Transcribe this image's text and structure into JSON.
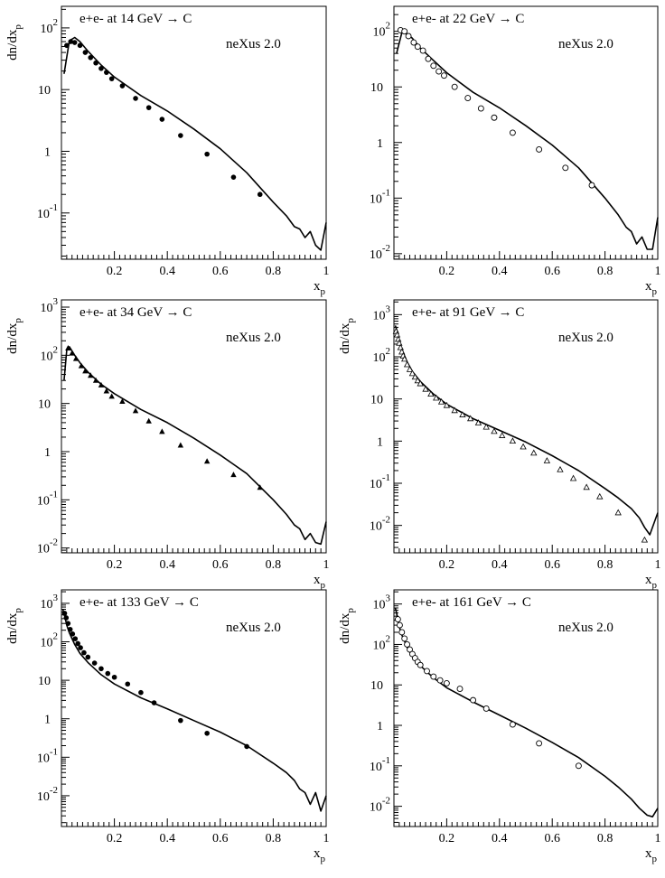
{
  "chart_data": [
    {
      "type": "line+scatter",
      "title": "e+e- at 14 GeV → C",
      "annotation": "neXus 2.0",
      "ylabel": "dn/dx",
      "ylabel_sub": "p",
      "xlabel": "x",
      "xlabel_sub": "p",
      "xlim": [
        0,
        1
      ],
      "ylim_log": [
        -1.75,
        2.35
      ],
      "y_scale": "log",
      "xticks": [
        0.2,
        0.4,
        0.6,
        0.8,
        1
      ],
      "xtick_labels": [
        "0.2",
        "0.4",
        "0.6",
        "0.8",
        "1"
      ],
      "yticks_exp": [
        -1,
        0,
        1,
        2
      ],
      "ytick_labels": [
        {
          "base": "10",
          "exp": "-1"
        },
        {
          "base": "1",
          "exp": ""
        },
        {
          "base": "10",
          "exp": ""
        },
        {
          "base": "10",
          "exp": "2"
        }
      ],
      "marker": "filled-circle",
      "data_points": {
        "x": [
          0.02,
          0.035,
          0.05,
          0.07,
          0.09,
          0.11,
          0.13,
          0.15,
          0.17,
          0.19,
          0.23,
          0.28,
          0.33,
          0.38,
          0.45,
          0.55,
          0.65,
          0.75
        ],
        "y": [
          52,
          60,
          58,
          52,
          40,
          33,
          27,
          22,
          19,
          15,
          11.5,
          7.2,
          5.1,
          3.3,
          1.8,
          0.9,
          0.38,
          0.2
        ]
      },
      "model_curve": {
        "x": [
          0.01,
          0.03,
          0.05,
          0.07,
          0.1,
          0.15,
          0.2,
          0.3,
          0.4,
          0.5,
          0.6,
          0.7,
          0.8,
          0.85,
          0.88,
          0.9,
          0.92,
          0.94,
          0.96,
          0.98,
          1.0
        ],
        "y": [
          18,
          62,
          70,
          60,
          42,
          25,
          16,
          8,
          4.5,
          2.3,
          1.1,
          0.45,
          0.15,
          0.09,
          0.06,
          0.055,
          0.04,
          0.05,
          0.03,
          0.025,
          0.07
        ]
      }
    },
    {
      "type": "line+scatter",
      "title": "e+e- at 22 GeV → C",
      "annotation": "neXus 2.0",
      "ylabel": "",
      "ylabel_sub": "",
      "xlabel": "x",
      "xlabel_sub": "p",
      "xlim": [
        0,
        1
      ],
      "ylim_log": [
        -2.1,
        2.45
      ],
      "y_scale": "log",
      "xticks": [
        0.2,
        0.4,
        0.6,
        0.8,
        1
      ],
      "xtick_labels": [
        "0.2",
        "0.4",
        "0.6",
        "0.8",
        "1"
      ],
      "yticks_exp": [
        -2,
        -1,
        0,
        1,
        2
      ],
      "ytick_labels": [
        {
          "base": "10",
          "exp": "-2"
        },
        {
          "base": "10",
          "exp": "-1"
        },
        {
          "base": "1",
          "exp": ""
        },
        {
          "base": "10",
          "exp": ""
        },
        {
          "base": "10",
          "exp": "2"
        }
      ],
      "marker": "open-circle",
      "data_points": {
        "x": [
          0.025,
          0.04,
          0.055,
          0.075,
          0.09,
          0.11,
          0.13,
          0.15,
          0.17,
          0.19,
          0.23,
          0.28,
          0.33,
          0.38,
          0.45,
          0.55,
          0.65,
          0.75
        ],
        "y": [
          105,
          100,
          82,
          63,
          53,
          45,
          32,
          24,
          19,
          16,
          10,
          6.3,
          4.1,
          2.8,
          1.5,
          0.75,
          0.35,
          0.17
        ]
      },
      "model_curve": {
        "x": [
          0.01,
          0.03,
          0.05,
          0.07,
          0.1,
          0.15,
          0.2,
          0.3,
          0.4,
          0.5,
          0.6,
          0.7,
          0.8,
          0.85,
          0.88,
          0.9,
          0.92,
          0.94,
          0.96,
          0.98,
          1.0
        ],
        "y": [
          40,
          95,
          90,
          75,
          50,
          30,
          18,
          8,
          4.2,
          2,
          0.9,
          0.35,
          0.1,
          0.05,
          0.03,
          0.025,
          0.015,
          0.02,
          0.012,
          0.012,
          0.045
        ]
      }
    },
    {
      "type": "line+scatter",
      "title": "e+e- at 34 GeV → C",
      "annotation": "neXus 2.0",
      "ylabel": "dn/dx",
      "ylabel_sub": "p",
      "xlabel": "x",
      "xlabel_sub": "p",
      "xlim": [
        0,
        1
      ],
      "ylim_log": [
        -2.1,
        3.15
      ],
      "y_scale": "log",
      "xticks": [
        0.2,
        0.4,
        0.6,
        0.8,
        1
      ],
      "xtick_labels": [
        "0.2",
        "0.4",
        "0.6",
        "0.8",
        "1"
      ],
      "yticks_exp": [
        -2,
        -1,
        0,
        1,
        2,
        3
      ],
      "ytick_labels": [
        {
          "base": "10",
          "exp": "-2"
        },
        {
          "base": "10",
          "exp": "-1"
        },
        {
          "base": "1",
          "exp": ""
        },
        {
          "base": "10",
          "exp": ""
        },
        {
          "base": "10",
          "exp": "2"
        },
        {
          "base": "10",
          "exp": "3"
        }
      ],
      "marker": "filled-triangle",
      "data_points": {
        "x": [
          0.025,
          0.04,
          0.055,
          0.075,
          0.09,
          0.11,
          0.13,
          0.15,
          0.17,
          0.19,
          0.23,
          0.28,
          0.33,
          0.38,
          0.45,
          0.55,
          0.65,
          0.75
        ],
        "y": [
          140,
          110,
          85,
          60,
          47,
          38,
          30,
          24,
          18,
          14,
          11,
          7,
          4.3,
          2.6,
          1.35,
          0.63,
          0.33,
          0.18
        ]
      },
      "model_curve": {
        "x": [
          0.01,
          0.02,
          0.03,
          0.05,
          0.07,
          0.1,
          0.15,
          0.2,
          0.3,
          0.4,
          0.5,
          0.6,
          0.7,
          0.8,
          0.85,
          0.88,
          0.9,
          0.92,
          0.94,
          0.96,
          0.98,
          1.0
        ],
        "y": [
          30,
          130,
          150,
          100,
          70,
          45,
          25,
          16,
          7.5,
          4,
          1.9,
          0.85,
          0.35,
          0.1,
          0.05,
          0.03,
          0.025,
          0.015,
          0.02,
          0.013,
          0.012,
          0.035
        ]
      }
    },
    {
      "type": "line+scatter",
      "title": "e+e- at 91 GeV → C",
      "annotation": "neXus 2.0",
      "ylabel": "dn/dx",
      "ylabel_sub": "p",
      "xlabel": "x",
      "xlabel_sub": "p",
      "xlim": [
        0,
        1
      ],
      "ylim_log": [
        -2.65,
        3.35
      ],
      "y_scale": "log",
      "xticks": [
        0.2,
        0.4,
        0.6,
        0.8,
        1
      ],
      "xtick_labels": [
        "0.2",
        "0.4",
        "0.6",
        "0.8",
        "1"
      ],
      "yticks_exp": [
        -2,
        -1,
        0,
        1,
        2,
        3
      ],
      "ytick_labels": [
        {
          "base": "10",
          "exp": "-2"
        },
        {
          "base": "10",
          "exp": "-1"
        },
        {
          "base": "1",
          "exp": ""
        },
        {
          "base": "10",
          "exp": ""
        },
        {
          "base": "10",
          "exp": "2"
        },
        {
          "base": "10",
          "exp": "3"
        }
      ],
      "marker": "open-triangle",
      "data_points": {
        "x": [
          0.008,
          0.012,
          0.016,
          0.02,
          0.025,
          0.03,
          0.035,
          0.04,
          0.05,
          0.06,
          0.07,
          0.08,
          0.09,
          0.1,
          0.12,
          0.14,
          0.16,
          0.18,
          0.2,
          0.23,
          0.26,
          0.29,
          0.32,
          0.35,
          0.38,
          0.41,
          0.45,
          0.49,
          0.53,
          0.58,
          0.63,
          0.68,
          0.73,
          0.78,
          0.85,
          0.95
        ],
        "y": [
          400,
          330,
          260,
          210,
          165,
          130,
          105,
          88,
          65,
          50,
          40,
          33,
          27,
          23,
          17,
          13,
          10.5,
          8.5,
          7,
          5.3,
          4.2,
          3.4,
          2.7,
          2.15,
          1.7,
          1.35,
          1,
          0.73,
          0.52,
          0.34,
          0.21,
          0.13,
          0.08,
          0.048,
          0.02,
          0.0045
        ]
      },
      "model_curve": {
        "x": [
          0.005,
          0.01,
          0.02,
          0.03,
          0.05,
          0.07,
          0.1,
          0.15,
          0.2,
          0.3,
          0.4,
          0.5,
          0.6,
          0.7,
          0.8,
          0.85,
          0.9,
          0.93,
          0.95,
          0.97,
          1.0
        ],
        "y": [
          550,
          450,
          240,
          150,
          75,
          45,
          26,
          13,
          7.5,
          3.4,
          1.8,
          0.95,
          0.45,
          0.2,
          0.075,
          0.045,
          0.025,
          0.015,
          0.009,
          0.006,
          0.02
        ]
      }
    },
    {
      "type": "line+scatter",
      "title": "e+e- at 133 GeV → C",
      "annotation": "neXus 2.0",
      "ylabel": "dn/dx",
      "ylabel_sub": "p",
      "xlabel": "x",
      "xlabel_sub": "p",
      "xlim": [
        0,
        1
      ],
      "ylim_log": [
        -2.8,
        3.35
      ],
      "y_scale": "log",
      "xticks": [
        0.2,
        0.4,
        0.6,
        0.8,
        1
      ],
      "xtick_labels": [
        "0.2",
        "0.4",
        "0.6",
        "0.8",
        "1"
      ],
      "yticks_exp": [
        -2,
        -1,
        0,
        1,
        2,
        3
      ],
      "ytick_labels": [
        {
          "base": "10",
          "exp": "-2"
        },
        {
          "base": "10",
          "exp": "-1"
        },
        {
          "base": "1",
          "exp": ""
        },
        {
          "base": "10",
          "exp": ""
        },
        {
          "base": "10",
          "exp": "2"
        },
        {
          "base": "10",
          "exp": "3"
        }
      ],
      "marker": "filled-circle",
      "data_points": {
        "x": [
          0.012,
          0.018,
          0.025,
          0.033,
          0.042,
          0.052,
          0.062,
          0.072,
          0.085,
          0.1,
          0.125,
          0.15,
          0.175,
          0.2,
          0.25,
          0.3,
          0.35,
          0.45,
          0.55,
          0.7
        ],
        "y": [
          550,
          420,
          300,
          210,
          160,
          120,
          90,
          70,
          52,
          40,
          28,
          20,
          15,
          12,
          8,
          4.8,
          2.6,
          0.9,
          0.42,
          0.19
        ]
      },
      "model_curve": {
        "x": [
          0.005,
          0.01,
          0.02,
          0.03,
          0.05,
          0.07,
          0.1,
          0.15,
          0.2,
          0.3,
          0.4,
          0.5,
          0.6,
          0.7,
          0.8,
          0.85,
          0.88,
          0.9,
          0.92,
          0.94,
          0.96,
          0.98,
          1.0
        ],
        "y": [
          700,
          550,
          270,
          170,
          85,
          50,
          29,
          14,
          8,
          3.5,
          1.8,
          0.9,
          0.45,
          0.2,
          0.07,
          0.04,
          0.025,
          0.015,
          0.012,
          0.006,
          0.012,
          0.004,
          0.01
        ]
      }
    },
    {
      "type": "line+scatter",
      "title": "e+e- at 161 GeV → C",
      "annotation": "neXus 2.0",
      "ylabel": "dn/dx",
      "ylabel_sub": "p",
      "xlabel": "x",
      "xlabel_sub": "p",
      "xlim": [
        0,
        1
      ],
      "ylim_log": [
        -2.5,
        3.35
      ],
      "y_scale": "log",
      "xticks": [
        0.2,
        0.4,
        0.6,
        0.8,
        1
      ],
      "xtick_labels": [
        "0.2",
        "0.4",
        "0.6",
        "0.8",
        "1"
      ],
      "yticks_exp": [
        -2,
        -1,
        0,
        1,
        2,
        3
      ],
      "ytick_labels": [
        {
          "base": "10",
          "exp": "-2"
        },
        {
          "base": "10",
          "exp": "-1"
        },
        {
          "base": "1",
          "exp": ""
        },
        {
          "base": "10",
          "exp": ""
        },
        {
          "base": "10",
          "exp": "2"
        },
        {
          "base": "10",
          "exp": "3"
        }
      ],
      "marker": "open-circle",
      "data_points": {
        "x": [
          0.015,
          0.022,
          0.03,
          0.04,
          0.05,
          0.06,
          0.07,
          0.08,
          0.09,
          0.1,
          0.125,
          0.15,
          0.175,
          0.2,
          0.25,
          0.3,
          0.35,
          0.45,
          0.55,
          0.7
        ],
        "y": [
          420,
          300,
          200,
          140,
          100,
          75,
          58,
          46,
          37,
          31,
          22,
          16,
          13,
          11,
          8,
          4.2,
          2.6,
          1.05,
          0.36,
          0.1
        ]
      },
      "model_curve": {
        "x": [
          0.005,
          0.01,
          0.02,
          0.03,
          0.05,
          0.07,
          0.1,
          0.15,
          0.2,
          0.3,
          0.4,
          0.5,
          0.6,
          0.7,
          0.8,
          0.85,
          0.9,
          0.93,
          0.96,
          0.98,
          1.0
        ],
        "y": [
          800,
          600,
          280,
          170,
          85,
          50,
          30,
          15,
          8.5,
          3.8,
          1.8,
          0.85,
          0.38,
          0.16,
          0.055,
          0.03,
          0.015,
          0.009,
          0.006,
          0.0055,
          0.009
        ]
      }
    }
  ]
}
